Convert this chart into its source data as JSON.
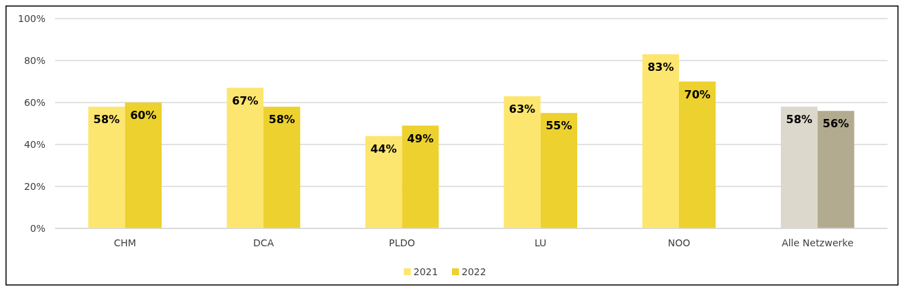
{
  "chart_data": {
    "type": "bar",
    "categories": [
      "CHM",
      "DCA",
      "PLDO",
      "LU",
      "NOO",
      "Alle Netzwerke"
    ],
    "series": [
      {
        "name": "2021",
        "color": "#fde66f",
        "colors": [
          "#fde66f",
          "#fde66f",
          "#fde66f",
          "#fde66f",
          "#fde66f",
          "#dcd9cc"
        ],
        "values": [
          58,
          67,
          44,
          63,
          83,
          58
        ],
        "value_labels": [
          "58%",
          "67%",
          "44%",
          "63%",
          "83%",
          "58%"
        ]
      },
      {
        "name": "2022",
        "color": "#edd12e",
        "colors": [
          "#edd12e",
          "#edd12e",
          "#edd12e",
          "#edd12e",
          "#edd12e",
          "#b3ab8f"
        ],
        "values": [
          60,
          58,
          49,
          55,
          70,
          56
        ],
        "value_labels": [
          "60%",
          "58%",
          "49%",
          "55%",
          "70%",
          "56%"
        ]
      }
    ],
    "ylim": [
      0,
      100
    ],
    "yticks": [
      {
        "value": 0,
        "label": "0%"
      },
      {
        "value": 20,
        "label": "20%"
      },
      {
        "value": 40,
        "label": "40%"
      },
      {
        "value": 60,
        "label": "60%"
      },
      {
        "value": 80,
        "label": "80%"
      },
      {
        "value": 100,
        "label": "100%"
      }
    ],
    "grid": "y",
    "legend": "bottom"
  }
}
